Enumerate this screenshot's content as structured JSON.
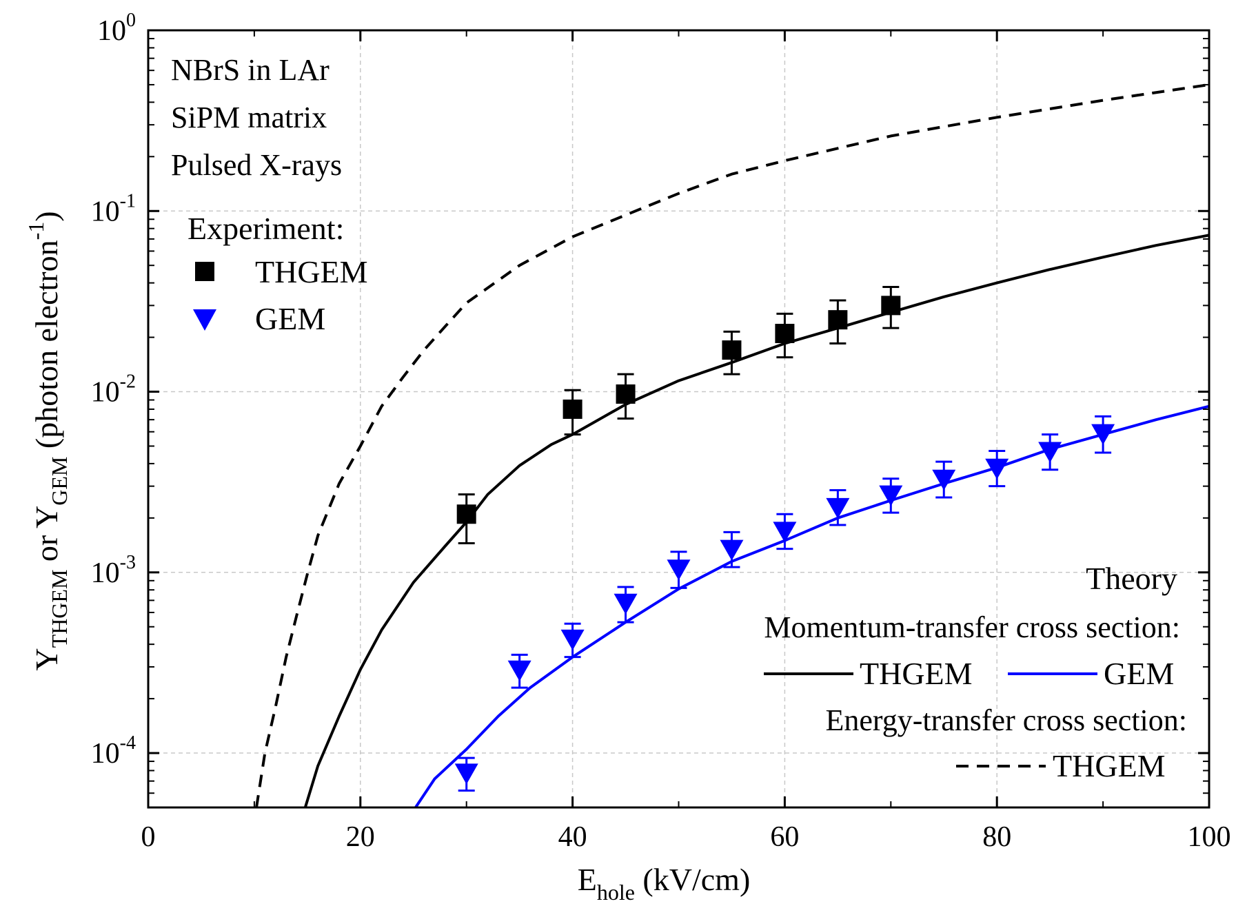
{
  "chart_data": {
    "type": "scatter",
    "y_scale": "log",
    "xlim": [
      0,
      100
    ],
    "ylim": [
      5e-05,
      1
    ],
    "x_ticks": [
      "0",
      "20",
      "40",
      "60",
      "80",
      "100"
    ],
    "x_tick_values": [
      0,
      20,
      40,
      60,
      80,
      100
    ],
    "y_ticks": [
      {
        "base": "10",
        "exp": "0",
        "value": 1
      },
      {
        "base": "10",
        "exp": "-1",
        "value": 0.1
      },
      {
        "base": "10",
        "exp": "-2",
        "value": 0.01
      },
      {
        "base": "10",
        "exp": "-3",
        "value": 0.001
      },
      {
        "base": "10",
        "exp": "-4",
        "value": 0.0001
      }
    ],
    "xlabel": {
      "main": "E",
      "sub": "hole",
      "rest": " (kV/cm)"
    },
    "ylabel": {
      "y1": "Y",
      "sub1": "THGEM",
      "mid": " or Y",
      "sub2": "GEM",
      "rest": " (photon electron",
      "sup": "-1",
      "close": ")"
    },
    "annotations": [
      "NBrS in LAr",
      "SiPM matrix",
      "Pulsed X-rays"
    ],
    "experiment_legend": {
      "title": "Experiment:",
      "items": [
        {
          "label": "THGEM",
          "marker": "square",
          "color": "#000000"
        },
        {
          "label": "GEM",
          "marker": "triangle-down",
          "color": "#0000ff"
        }
      ]
    },
    "theory_legend": {
      "title": "Theory",
      "momentum_title": "Momentum-transfer cross section:",
      "momentum_items": [
        {
          "label": "THGEM",
          "color": "#000000",
          "style": "solid"
        },
        {
          "label": "GEM",
          "color": "#0000ff",
          "style": "solid"
        }
      ],
      "energy_title": "Energy-transfer cross section:",
      "energy_items": [
        {
          "label": "THGEM",
          "color": "#000000",
          "style": "dashed"
        }
      ]
    },
    "series": [
      {
        "name": "THGEM experiment",
        "kind": "points",
        "marker": "square",
        "color": "#000000",
        "x": [
          30,
          40,
          45,
          55,
          60,
          65,
          70
        ],
        "y": [
          0.0021,
          0.008,
          0.0097,
          0.017,
          0.021,
          0.025,
          0.03
        ],
        "err_low": [
          0.00145,
          0.0058,
          0.0071,
          0.0125,
          0.0155,
          0.0185,
          0.0225
        ],
        "err_high": [
          0.0027,
          0.0102,
          0.0125,
          0.0215,
          0.027,
          0.032,
          0.038
        ]
      },
      {
        "name": "GEM experiment",
        "kind": "points",
        "marker": "triangle-down",
        "color": "#0000ff",
        "x": [
          30,
          35,
          40,
          45,
          50,
          55,
          60,
          65,
          70,
          75,
          80,
          85,
          90
        ],
        "y": [
          7.8e-05,
          0.00029,
          0.00043,
          0.00068,
          0.00105,
          0.00135,
          0.0017,
          0.0023,
          0.0027,
          0.0033,
          0.0038,
          0.0047,
          0.0059
        ],
        "err_low": [
          6.2e-05,
          0.00023,
          0.00034,
          0.00053,
          0.00082,
          0.00107,
          0.00135,
          0.00183,
          0.00214,
          0.0026,
          0.003,
          0.0037,
          0.0046
        ],
        "err_high": [
          9.4e-05,
          0.00035,
          0.00052,
          0.00083,
          0.0013,
          0.00167,
          0.0021,
          0.00285,
          0.0033,
          0.0041,
          0.0047,
          0.0058,
          0.0073
        ]
      },
      {
        "name": "Theory momentum-transfer THGEM",
        "kind": "line",
        "style": "solid",
        "color": "#000000",
        "x": [
          14.8,
          16,
          18,
          20,
          22,
          25,
          28,
          30,
          32,
          35,
          38,
          40,
          45,
          50,
          55,
          60,
          65,
          70,
          75,
          80,
          85,
          90,
          95,
          100
        ],
        "y": [
          5e-05,
          8.5e-05,
          0.00016,
          0.00029,
          0.00048,
          0.00088,
          0.0014,
          0.0019,
          0.0027,
          0.0039,
          0.0051,
          0.0058,
          0.0085,
          0.0115,
          0.0145,
          0.0185,
          0.0225,
          0.0275,
          0.0335,
          0.04,
          0.0475,
          0.0555,
          0.0645,
          0.0735
        ]
      },
      {
        "name": "Theory momentum-transfer GEM",
        "kind": "line",
        "style": "solid",
        "color": "#0000ff",
        "x": [
          25.2,
          27,
          30,
          33,
          36,
          40,
          45,
          50,
          55,
          60,
          65,
          70,
          75,
          80,
          85,
          90,
          95,
          100
        ],
        "y": [
          5e-05,
          7.2e-05,
          0.000105,
          0.00016,
          0.00023,
          0.00034,
          0.00053,
          0.00081,
          0.00115,
          0.0015,
          0.002,
          0.0025,
          0.0031,
          0.0038,
          0.0048,
          0.0058,
          0.007,
          0.0083
        ]
      },
      {
        "name": "Theory energy-transfer THGEM",
        "kind": "line",
        "style": "dashed",
        "color": "#000000",
        "x": [
          10.2,
          11,
          12,
          13,
          14,
          15,
          16,
          18,
          20,
          22,
          24,
          26,
          28,
          30,
          35,
          40,
          45,
          50,
          55,
          60,
          70,
          80,
          90,
          100
        ],
        "y": [
          5e-05,
          0.0001,
          0.00018,
          0.00034,
          0.00058,
          0.00098,
          0.0016,
          0.0031,
          0.005,
          0.0083,
          0.012,
          0.017,
          0.023,
          0.031,
          0.05,
          0.072,
          0.095,
          0.125,
          0.16,
          0.19,
          0.26,
          0.33,
          0.41,
          0.5
        ]
      }
    ]
  }
}
